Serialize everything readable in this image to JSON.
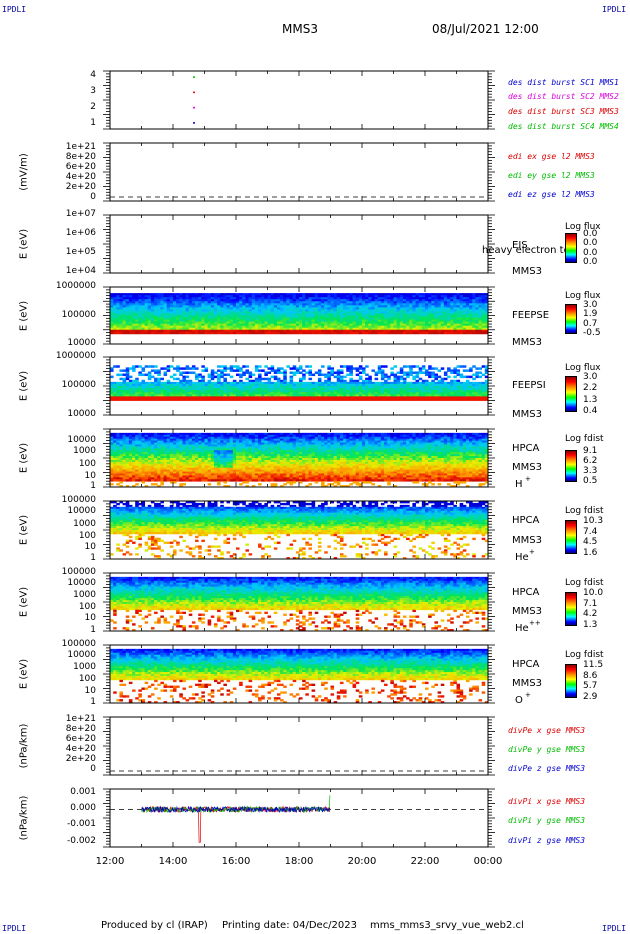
{
  "header": {
    "corner_left_top": "IPDLI",
    "corner_right_top": "IPDLI",
    "corner_left_bottom": "IPDLI",
    "corner_right_bottom": "IPDLI",
    "spacecraft": "MMS3",
    "datetime": "08/Jul/2021 12:00"
  },
  "footer": {
    "produced_by": "Produced by cl (IRAP)",
    "printing_date": "Printing date: 04/Dec/2023",
    "filename": "mms_mms3_srvy_vue_web2.cl"
  },
  "colors": {
    "red": "#dd0000",
    "green": "#00bb00",
    "blue": "#0000cc",
    "magenta": "#dd00dd"
  },
  "chart_data": [
    {
      "type": "scatter",
      "panel": "availability",
      "yticks": [
        "4",
        "3",
        "2",
        "1"
      ],
      "ylim": [
        0.6,
        4.4
      ],
      "series": [
        {
          "name": "des dist burst SC1 MMS1",
          "color": "#0000cc",
          "x": [
            "14:40"
          ],
          "y": [
            1
          ]
        },
        {
          "name": "des dist burst SC2 MMS2",
          "color": "#dd00dd",
          "x": [
            "14:40"
          ],
          "y": [
            2
          ]
        },
        {
          "name": "des dist burst SC3 MMS3",
          "color": "#dd0000",
          "x": [
            "14:40"
          ],
          "y": [
            3
          ]
        },
        {
          "name": "des dist burst SC4 MMS4",
          "color": "#00bb00",
          "x": [
            "14:40"
          ],
          "y": [
            4
          ]
        }
      ]
    },
    {
      "type": "line",
      "panel": "edi",
      "ylabel": "(mV/m)",
      "yticks": [
        "1e+21",
        "8e+20",
        "6e+20",
        "4e+20",
        "2e+20",
        "0"
      ],
      "series": [
        {
          "name": "edi ex gse l2 MMS3",
          "color": "#dd0000",
          "values": []
        },
        {
          "name": "edi ey gse l2 MMS3",
          "color": "#00bb00",
          "values": []
        },
        {
          "name": "edi ez gse l2 MMS3",
          "color": "#0000cc",
          "values": []
        }
      ]
    },
    {
      "type": "heatmap",
      "panel": "eis",
      "ylabel": "E (eV)",
      "yticks": [
        "1e+07",
        "1e+06",
        "1e+05",
        "1e+04"
      ],
      "instrument": "EIS",
      "species_label": "heavy electron to",
      "spacecraft": "MMS3",
      "colorbar_title": "Log flux",
      "colorbar_ticks": [
        "0.0",
        "0.0",
        "0.0",
        "0.0"
      ]
    },
    {
      "type": "heatmap",
      "panel": "feepse",
      "ylabel": "E (eV)",
      "yticks": [
        "1000000",
        "100000",
        "10000"
      ],
      "instrument": "FEEPSE",
      "spacecraft": "MMS3",
      "colorbar_title": "Log flux",
      "colorbar_ticks": [
        "3.0",
        "1.9",
        "0.7",
        "-0.5"
      ]
    },
    {
      "type": "heatmap",
      "panel": "feepsi",
      "ylabel": "E (eV)",
      "yticks": [
        "1000000",
        "100000",
        "10000"
      ],
      "instrument": "FEEPSI",
      "spacecraft": "MMS3",
      "colorbar_title": "Log flux",
      "colorbar_ticks": [
        "3.0",
        "2.2",
        "1.3",
        "0.4"
      ]
    },
    {
      "type": "heatmap",
      "panel": "hpca_h",
      "ylabel": "E (eV)",
      "yticks": [
        "10000",
        "1000",
        "100",
        "10",
        "1"
      ],
      "instrument": "HPCA",
      "spacecraft": "MMS3",
      "species": "H",
      "charge": "+",
      "colorbar_title": "Log fdist",
      "colorbar_ticks": [
        "9.1",
        "6.2",
        "3.3",
        "0.5"
      ]
    },
    {
      "type": "heatmap",
      "panel": "hpca_he1",
      "ylabel": "E (eV)",
      "yticks": [
        "100000",
        "10000",
        "1000",
        "100",
        "10",
        "1"
      ],
      "instrument": "HPCA",
      "spacecraft": "MMS3",
      "species": "He",
      "charge": "+",
      "colorbar_title": "Log fdist",
      "colorbar_ticks": [
        "10.3",
        "7.4",
        "4.5",
        "1.6"
      ]
    },
    {
      "type": "heatmap",
      "panel": "hpca_he2",
      "ylabel": "E (eV)",
      "yticks": [
        "100000",
        "10000",
        "1000",
        "100",
        "10",
        "1"
      ],
      "instrument": "HPCA",
      "spacecraft": "MMS3",
      "species": "He",
      "charge": "++",
      "colorbar_title": "Log fdist",
      "colorbar_ticks": [
        "10.0",
        "7.1",
        "4.2",
        "1.3"
      ]
    },
    {
      "type": "heatmap",
      "panel": "hpca_o",
      "ylabel": "E (eV)",
      "yticks": [
        "100000",
        "10000",
        "1000",
        "100",
        "10",
        "1"
      ],
      "instrument": "HPCA",
      "spacecraft": "MMS3",
      "species": "O",
      "charge": "+",
      "colorbar_title": "Log fdist",
      "colorbar_ticks": [
        "11.5",
        "8.6",
        "5.7",
        "2.9"
      ]
    },
    {
      "type": "line",
      "panel": "divpe",
      "ylabel": "(nPa/km)",
      "yticks": [
        "1e+21",
        "8e+20",
        "6e+20",
        "4e+20",
        "2e+20",
        "0"
      ],
      "series": [
        {
          "name": "divPe x gse MMS3",
          "color": "#dd0000",
          "values": []
        },
        {
          "name": "divPe y gse MMS3",
          "color": "#00bb00",
          "values": []
        },
        {
          "name": "divPe z gse MMS3",
          "color": "#0000cc",
          "values": []
        }
      ]
    },
    {
      "type": "line",
      "panel": "divpi",
      "ylabel": "(nPa/km)",
      "yticks": [
        "0.001",
        "0.000",
        "-0.001",
        "-0.002"
      ],
      "ylim": [
        -0.0024,
        0.0013
      ],
      "x_range": [
        "13:00",
        "19:00"
      ],
      "series": [
        {
          "name": "divPi x gse MMS3",
          "color": "#dd0000",
          "values": []
        },
        {
          "name": "divPi y gse MMS3",
          "color": "#00bb00",
          "values": []
        },
        {
          "name": "divPi z gse MMS3",
          "color": "#0000cc",
          "values": []
        }
      ]
    }
  ],
  "xaxis": {
    "ticks": [
      "12:00",
      "14:00",
      "16:00",
      "18:00",
      "20:00",
      "22:00",
      "00:00"
    ]
  }
}
